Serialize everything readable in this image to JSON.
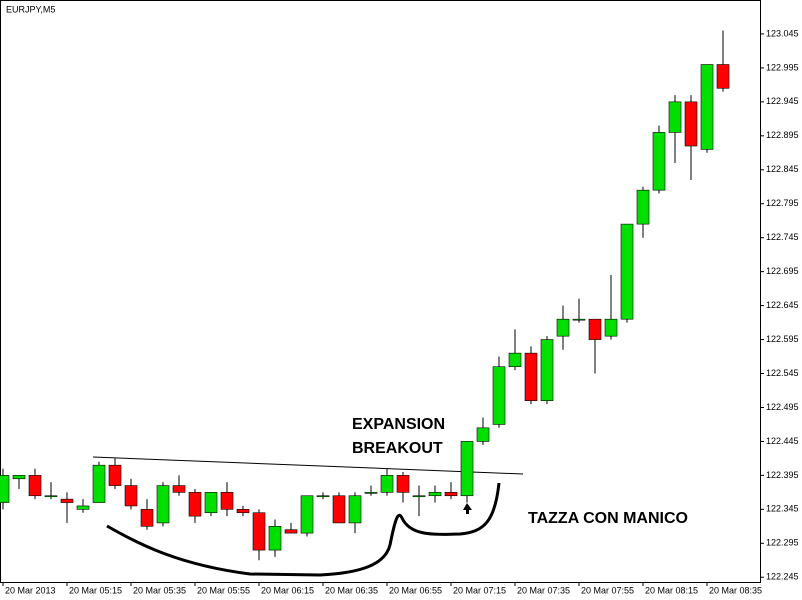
{
  "chart_data": {
    "type": "candlestick",
    "title": "EURJPY,M5",
    "annotations": [
      "EXPANSION",
      "BREAKOUT",
      "TAZZA CON MANICO"
    ],
    "categories": [
      "20 Mar 2013",
      null,
      null,
      null,
      "20 Mar 05:15",
      null,
      null,
      null,
      "20 Mar 05:35",
      null,
      null,
      null,
      "20 Mar 05:55",
      null,
      null,
      null,
      "20 Mar 06:15",
      null,
      null,
      null,
      "20 Mar 06:35",
      null,
      null,
      null,
      "20 Mar 06:55",
      null,
      null,
      null,
      "20 Mar 07:15",
      null,
      null,
      null,
      "20 Mar 07:35",
      null,
      null,
      null,
      "20 Mar 07:55",
      null,
      null,
      null,
      "20 Mar 08:15",
      null,
      null,
      null,
      "20 Mar 08:35",
      null
    ],
    "open": [
      122.355,
      122.39,
      122.395,
      122.365,
      122.36,
      122.345,
      122.355,
      122.41,
      122.38,
      122.345,
      122.325,
      122.38,
      122.37,
      122.34,
      122.37,
      122.345,
      122.34,
      122.285,
      122.315,
      122.31,
      122.365,
      122.365,
      122.325,
      122.37,
      122.37,
      122.395,
      122.365,
      122.365,
      122.37,
      122.365,
      122.445,
      122.47,
      122.555,
      122.575,
      122.505,
      122.6,
      122.625,
      122.625,
      122.6,
      122.625,
      122.765,
      122.815,
      122.9,
      122.945,
      122.875,
      123.0
    ],
    "high": [
      122.405,
      122.395,
      122.405,
      122.385,
      122.37,
      122.36,
      122.415,
      122.42,
      122.39,
      122.36,
      122.385,
      122.395,
      122.375,
      122.37,
      122.385,
      122.35,
      122.345,
      122.33,
      122.325,
      122.365,
      122.37,
      122.37,
      122.37,
      122.38,
      122.405,
      122.4,
      122.38,
      122.38,
      122.385,
      122.445,
      122.48,
      122.57,
      122.61,
      122.585,
      122.6,
      122.645,
      122.655,
      122.625,
      122.69,
      122.765,
      122.82,
      122.91,
      122.955,
      122.955,
      123.0,
      123.05
    ],
    "low": [
      122.345,
      122.375,
      122.36,
      122.36,
      122.325,
      122.34,
      122.355,
      122.375,
      122.345,
      122.315,
      122.32,
      122.365,
      122.325,
      122.335,
      122.335,
      122.335,
      122.27,
      122.275,
      122.31,
      122.305,
      122.36,
      122.325,
      122.31,
      122.365,
      122.365,
      122.355,
      122.335,
      122.355,
      122.36,
      122.355,
      122.44,
      122.465,
      122.55,
      122.5,
      122.5,
      122.58,
      122.62,
      122.545,
      122.595,
      122.62,
      122.745,
      122.81,
      122.855,
      122.83,
      122.87,
      122.96
    ],
    "close": [
      122.395,
      122.395,
      122.365,
      122.365,
      122.355,
      122.35,
      122.41,
      122.38,
      122.35,
      122.32,
      122.38,
      122.37,
      122.335,
      122.37,
      122.345,
      122.34,
      122.285,
      122.32,
      122.31,
      122.365,
      122.365,
      122.325,
      122.365,
      122.37,
      122.395,
      122.37,
      122.365,
      122.37,
      122.365,
      122.445,
      122.465,
      122.555,
      122.575,
      122.505,
      122.595,
      122.625,
      122.625,
      122.595,
      122.625,
      122.765,
      122.815,
      122.9,
      122.945,
      122.88,
      123.0,
      122.965
    ],
    "up_color": "#00e000",
    "down_color": "#ff0000",
    "ylim": [
      122.238,
      123.095
    ],
    "yticks": [
      123.045,
      122.995,
      122.945,
      122.895,
      122.845,
      122.795,
      122.745,
      122.695,
      122.645,
      122.595,
      122.545,
      122.495,
      122.445,
      122.395,
      122.345,
      122.295,
      122.245
    ]
  }
}
